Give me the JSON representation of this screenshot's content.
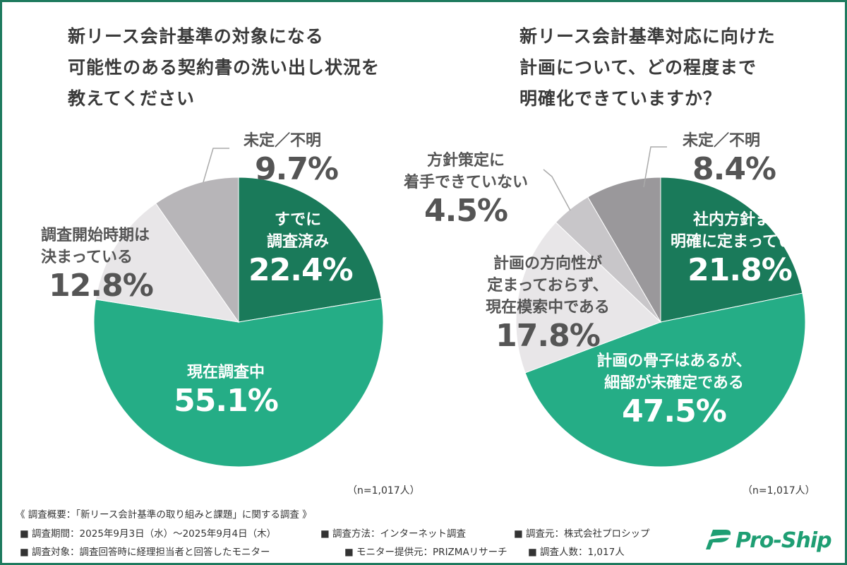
{
  "left": {
    "title_lines": [
      "新リース会計基準の対象になる",
      "可能性のある契約書の洗い出し状況を",
      "教えてください"
    ],
    "n_label": "（n=1,017人）"
  },
  "right": {
    "title_lines": [
      "新リース会計基準対応に向けた",
      "計画について、どの程度まで",
      "明確化できていますか？"
    ],
    "n_label": "（n=1,017人）"
  },
  "chart_data": [
    {
      "type": "pie",
      "title": "新リース会計基準の対象になる可能性のある契約書の洗い出し状況を教えてください",
      "slices": [
        {
          "label_lines": [
            "すでに",
            "調査済み"
          ],
          "label": "すでに調査済み",
          "value": 22.4,
          "pct": "22.4%",
          "color": "#1a7a5a"
        },
        {
          "label_lines": [
            "現在調査中"
          ],
          "label": "現在調査中",
          "value": 55.1,
          "pct": "55.1%",
          "color": "#25ad86"
        },
        {
          "label_lines": [
            "調査開始時期は",
            "決まっている"
          ],
          "label": "調査開始時期は決まっている",
          "value": 12.8,
          "pct": "12.8%",
          "color": "#e8e6e8"
        },
        {
          "label_lines": [
            "未定／不明"
          ],
          "label": "未定／不明",
          "value": 9.7,
          "pct": "9.7%",
          "color": "#b7b5b8"
        }
      ],
      "n": "n=1,017人"
    },
    {
      "type": "pie",
      "title": "新リース会計基準対応に向けた計画について、どの程度まで明確化できていますか？",
      "slices": [
        {
          "label_lines": [
            "社内方針まで",
            "明確に定まっている"
          ],
          "label": "社内方針まで明確に定まっている",
          "value": 21.8,
          "pct": "21.8%",
          "color": "#1a7a5a"
        },
        {
          "label_lines": [
            "計画の骨子はあるが、",
            "細部が未確定である"
          ],
          "label": "計画の骨子はあるが、細部が未確定である",
          "value": 47.5,
          "pct": "47.5%",
          "color": "#25ad86"
        },
        {
          "label_lines": [
            "計画の方向性が",
            "定まっておらず、",
            "現在模索中である"
          ],
          "label": "計画の方向性が定まっておらず、現在模索中である",
          "value": 17.8,
          "pct": "17.8%",
          "color": "#e8e6e8"
        },
        {
          "label_lines": [
            "方針策定に",
            "着手できていない"
          ],
          "label": "方針策定に着手できていない",
          "value": 4.5,
          "pct": "4.5%",
          "color": "#c8c6c9"
        },
        {
          "label_lines": [
            "未定／不明"
          ],
          "label": "未定／不明",
          "value": 8.4,
          "pct": "8.4%",
          "color": "#9a989b"
        }
      ],
      "n": "n=1,017人"
    }
  ],
  "footer": {
    "heading": "《 調査概要：「新リース会計基準の取り組みと課題」に関する調査 》",
    "period": "■ 調査期間：2025年9月3日（水）〜2025年9月4日（木）",
    "method": "■ 調査方法：インターネット調査",
    "source": "■ 調査元：株式会社プロシップ",
    "target": "■ 調査対象：調査回答時に経理担当者と回答したモニター",
    "provider": "■ モニター提供元：PRIZMAリサーチ",
    "count": "■ 調査人数：1,017人"
  },
  "logo": {
    "text": "Pro-Ship",
    "color": "#1e9e73"
  }
}
